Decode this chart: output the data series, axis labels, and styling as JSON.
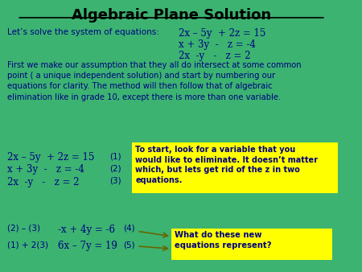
{
  "title": "Algebraic Plane Solution",
  "bg_color": "#3cb371",
  "text_color": "#000080",
  "title_color": "#000000",
  "yellow_box_color": "#ffff00",
  "fig_width": 4.5,
  "fig_height": 3.38,
  "intro_line": "Let’s solve the system of equations:",
  "eq1": "2x – 5y  + 2z = 15",
  "eq2": "x + 3y  -   z = -4",
  "eq3": "2x  -y   -   z = 2",
  "paragraph": "First we make our assumption that they all do intersect at some common\npoint ( a unique independent solution) and start by numbering our\nequations for clarity. The method will then follow that of algebraic\nelimination like in grade 10, except there is more than one variable.",
  "numbered_eq1": "2x – 5y  + 2z = 15",
  "numbered_eq2": "x + 3y  -   z = -4",
  "numbered_eq3": "2x  -y   -   z = 2",
  "num1": "(1)",
  "num2": "(2)",
  "num3": "(3)",
  "derived1_label": "(2) – (3)",
  "derived1_eq": "-x + 4y = -6",
  "derived1_num": "(4)",
  "derived2_label": "(1) + 2(3)",
  "derived2_eq": "6x – 7y = 19",
  "derived2_num": "(5)",
  "tooltip1": "To start, look for a variable that you\nwould like to eliminate. It doesn’t matter\nwhich, but lets get rid of the z in two\nequations.",
  "tooltip2": "What do these new\nequations represent?"
}
